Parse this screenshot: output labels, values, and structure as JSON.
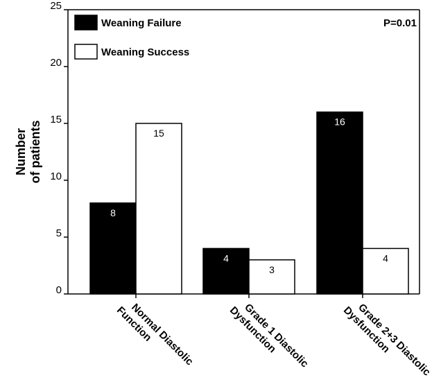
{
  "chart_data": {
    "type": "bar",
    "ylabel_lines": [
      "Number",
      "of patients"
    ],
    "categories": [
      [
        "Normal Diastolic",
        "Function"
      ],
      [
        "Grade 1 Diastolic",
        "Dysfunction"
      ],
      [
        "Grade 2+3 Diastolic",
        "Dysfunction"
      ]
    ],
    "series": [
      {
        "name": "Weaning Failure",
        "values": [
          8,
          4,
          16
        ],
        "color": "#000000",
        "label_color": "#ffffff"
      },
      {
        "name": "Weaning Success",
        "values": [
          15,
          3,
          4
        ],
        "color": "#ffffff",
        "label_color": "#000000"
      }
    ],
    "ylim": [
      0,
      25
    ],
    "yticks": [
      0,
      5,
      10,
      15,
      20,
      25
    ],
    "annotation": "P=0.01",
    "legend_position": "top-left",
    "grid": false
  }
}
